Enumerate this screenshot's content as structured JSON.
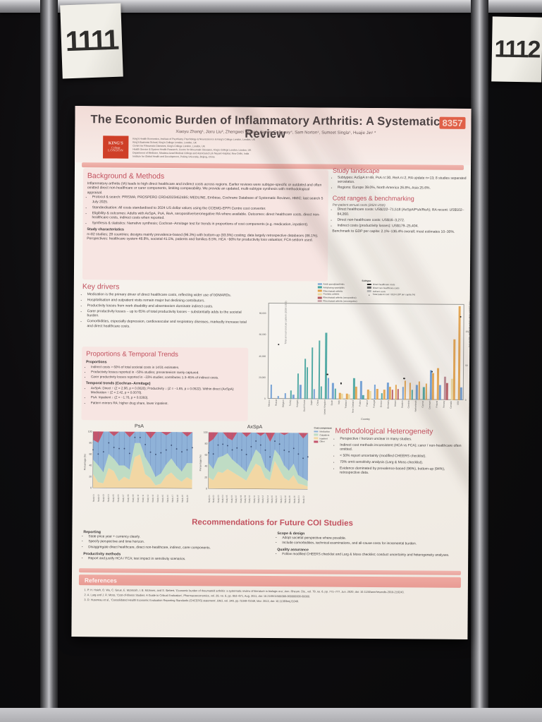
{
  "scene": {
    "board_number_left": "1111",
    "board_number_right": "1112"
  },
  "poster": {
    "title": "The Economic Burden of Inflammatory Arthritis: A Systematic Review",
    "badge": "8357",
    "authors": "Xiaoyu Zhang¹, Jiaru Liu², Zhengwei Wang³, James Galloway⁴, Sam Norton⁴, Sumeet Singla⁵, Huajie Jin¹ *",
    "logo_lines": [
      "KING'S",
      "College",
      "LONDON"
    ],
    "affiliations": [
      "King's Health Economics, Institute of Psychiatry, Psychology & Neuroscience at King's College London, London, UK",
      "King's Business School, King's College London, London, UK",
      "Centre for Rheumatic Diseases, King's College London, London, UK",
      "Health Service & System Health Research, Centre for Rheumatic Diseases, King's College London, London, UK",
      "Department of Medicine, Maulana Azad Medical College and Associated Lok Nayak Hospital, New Delhi, India",
      "Institute for Global Health and Development, Peking University, Beijing, China"
    ],
    "sections": {
      "background": {
        "heading": "Background & Methods",
        "intro": "Inflammatory arthritis (IA) leads to high direct healthcare and indirect costs across regions. Earlier reviews were subtype-specific or outdated and often omitted direct non-healthcare or carer components, limiting comparability. We provide an updated, multi-subtype synthesis with methodological appraisal.",
        "bullets": [
          "Protocol & search: PRISMA; PROSPERO CRD420234524B5; MEDLINE, Embase, Cochrane Database of Systematic Reviews, HMIC; last search 5 July 2025.",
          "Standardisation: All costs standardised to 2024 US dollar values using the CCEMG-EPPI Centre cost converter.",
          "Eligibility & outcomes: Adults with AxSpA, PsA, ReA, seropositive/seronegative RA where available. Outcomes: direct healthcare costs, direct non-healthcare costs, indirect costs when reported.",
          "Synthesis & statistics: Narrative synthesis; Cochran–Armitage test for trends in proportions of cost components (e.g. medication, inpatient)."
        ],
        "subheading": "Study characteristics",
        "characteristics": "n=82 studies; 28 countries; designs mainly prevalence-based (96.3%) with bottom-up (93.9%) costing; data largely retrospective databases (86.1%). Perspectives: healthcare system 48.8%, societal 41.5%, patients and families 8.5%. HCA ~90% for productivity loss valuation; FCA seldom used."
      },
      "study_landscape": {
        "heading": "Study landscape",
        "bullets": [
          "Subtypes: AxSpA n=49, PsA n=30, ReA n=2, RA update n=13; 8 studies separated serostatus.",
          "Regions: Europe 39.0%, North America 26.8%, Asia 25.6%."
        ]
      },
      "cost_ranges": {
        "heading": "Cost ranges & benchmarking",
        "note": "Per-patient annual costs (2024 USD)",
        "bullets": [
          "Direct healthcare costs: US$222–71,518 (AxSpA/PsA/ReA); RA recent: US$502–84,260.",
          "Direct non-healthcare costs: US$16–3,272.",
          "Indirect costs (productivity losses): US$179–25,404."
        ],
        "benchmark": "Benchmark to GDP per capita: 2.1%–136.4% overall; most estimates 10–30%."
      },
      "key_drivers": {
        "heading": "Key drivers",
        "bullets": [
          "Medication is the primary driver of direct healthcare costs, reflecting wider use of bDMARDs.",
          "Hospitalisation and outpatient visits remain major but declining contributors.",
          "Productivity losses from work disability and absenteeism dominate indirect costs.",
          "Carer productivity losses – up to 65% of total productivity losses – substantially adds to the societal burden.",
          "Comorbidities, especially depression, cardiovascular and respiratory diseases, markedly increase total and direct healthcare costs."
        ]
      },
      "proportions": {
        "heading": "Proportions & Temporal Trends",
        "sub1": "Proportions",
        "bullets1": [
          "Indirect costs > 60% of total societal costs in 14/31 estimates.",
          "Productivity losses reported in ~50% studies; presenteeism rarely captured.",
          "Carer productivity losses reported in ~33% studies; contributes 1.3–65% of indirect costs."
        ],
        "sub2": "Temporal trends (Cochran–Armitage)",
        "bullets2": [
          "AxSpA: Direct ↑ (Z = 2.98, p = 0.0020); Productivity ↓ (Z = −1.85, p = 0.0522). Within direct (AxSpA): Medication ↑ (Z = 2.42, p = 0.0078).",
          "PsA: Inpatient ↓ (Z = −1.76, p = 0.0393).",
          "Pattern mirrors RA: higher drug share, lower inpatient."
        ]
      },
      "heterogeneity": {
        "heading": "Methodological Heterogeneity",
        "bullets": [
          "Perspective / horizon unclear in many studies.",
          "Indirect cost methods inconsistent (HCA vs FCA); carer / non-healthcare often omitted.",
          "< 50% report uncertainty (modified CHEERS checklist).",
          "70% omit sensitivity analysis (Larg & Moss checklist).",
          "Evidence dominated by prevalence-based (96%), bottom-up (94%), retrospective data."
        ]
      },
      "recommendations": {
        "heading": "Recommendations for Future COI Studies",
        "left": {
          "sub1": "Reporting",
          "b1": [
            "State price year + currency clearly.",
            "Specify perspective and time horizon.",
            "Disaggregate direct healthcare, direct non-healthcare, indirect, carer components."
          ],
          "sub2": "Productivity methods",
          "b2": [
            "Report and justify HCA / FCA; test impact in sensitivity scenarios."
          ]
        },
        "right": {
          "sub1": "Scope & design",
          "b1": [
            "Adopt societal perspective where possible.",
            "Include comorbidities, technical examinations, and all-cause costs for incremental burden."
          ],
          "sub2": "Quality assurance",
          "b2": [
            "Follow modified CHEERS checklist and Larg & Moss checklist; conduct uncertainty and heterogeneity analyses."
          ]
        }
      },
      "references": {
        "heading": "References",
        "items": [
          "P. H. Hsieh, O. Wu, C. Geue, E. McIntosh, I. B. McInnes, and S. Siebert, 'Economic burden of rheumatoid arthritis: a systematic review of literature in biologic era', Ann. Rheum. Dis., vol. 79, no. 6, pp. 771–777, Jun. 2020, doi: 10.1136/annrheumdis-2019-216243.",
          "A. Larg and J. R. Moss, 'Cost-of-Illness Studies: A Guide to Critical Evaluation', Pharmacoeconomics, vol. 29, no. 8, pp. 653–671, Aug. 2011, doi: 10.2165/11588380-000000000-00000.",
          "D. Husereau et al., 'Consolidated Health Economic Evaluation Reporting Standards (CHEERS) statement', BMJ, vol. 346, pp. f1049–f1049, Mar. 2013, doi: 10.1136/bmj.f1049."
        ]
      }
    }
  },
  "chart_data": [
    {
      "type": "bar",
      "title": "",
      "xlabel": "Country",
      "ylabel": "Total annual cost per patient (2024 USD)",
      "ylabel_right": "Total patient cost / 2024 GDP per capita (%)",
      "ylim": [
        0,
        90000
      ],
      "yticks": [
        "0",
        "20,000",
        "40,000",
        "60,000",
        "80,000"
      ],
      "ytick_values": [
        0,
        20000,
        40000,
        60000,
        80000
      ],
      "right_axis_max": 140,
      "yticks_right": [
        "0",
        "50",
        "100"
      ],
      "ytick_right_values": [
        0,
        50,
        100
      ],
      "legend_title": "Subtype",
      "subtypes": [
        {
          "label": "Axial spondyloarthritis",
          "color": "#6b9bd2"
        },
        {
          "label": "Ankylosing spondylitis",
          "color": "#46a5a0"
        },
        {
          "label": "Rheumatoid arthritis",
          "color": "#e2a24b"
        },
        {
          "label": "Psoriatic arthritis",
          "color": "#ead9a0"
        },
        {
          "label": "Rheumatoid arthritis (seropositive)",
          "color": "#b4575f"
        },
        {
          "label": "Rheumatoid arthritis (seronegative)",
          "color": "#b98a93"
        }
      ],
      "cost_types": [
        {
          "label": "Direct healthcare costs",
          "color": "#222222"
        },
        {
          "label": "Direct non-healthcare costs",
          "color": "#666666"
        },
        {
          "label": "Indirect costs",
          "color": "#bbbbbb"
        }
      ],
      "marker_label": "Total patient cost / 2024 GDP per capita (%)",
      "groups": [
        {
          "c": "Mexico",
          "b": [
            [
              0,
              13000
            ]
          ]
        },
        {
          "c": "Russia",
          "b": [
            [
              0,
              2500
            ]
          ],
          "d": 78
        },
        {
          "c": "Belgium",
          "b": [
            [
              0,
              5000
            ]
          ]
        },
        {
          "c": "Turkey",
          "b": [
            [
              1,
              8000
            ],
            [
              0,
              4000
            ]
          ]
        },
        {
          "c": "Hungary",
          "b": [
            [
              1,
              24000
            ],
            [
              0,
              13000
            ]
          ]
        },
        {
          "c": "South Korea",
          "b": [
            [
              1,
              38000
            ],
            [
              1,
              30000
            ]
          ]
        },
        {
          "c": "Japan",
          "b": [
            [
              1,
              48000
            ],
            [
              0,
              9000
            ]
          ]
        },
        {
          "c": "China",
          "b": [
            [
              1,
              55000
            ],
            [
              1,
              12000
            ]
          ]
        },
        {
          "c": "United Kingdom",
          "b": [
            [
              1,
              62000
            ],
            [
              0,
              20000
            ]
          ],
          "d": 35
        },
        {
          "c": "Spain",
          "b": [
            [
              0,
              15000
            ],
            [
              1,
              10000
            ]
          ]
        },
        {
          "c": "Italy",
          "b": [
            [
              2,
              6000
            ],
            [
              3,
              5000
            ]
          ],
          "d": 22
        },
        {
          "c": "Thailand",
          "b": [
            [
              2,
              5000
            ],
            [
              3,
              4500
            ]
          ]
        },
        {
          "c": "New Zealand",
          "b": [
            [
              1,
              20000
            ],
            [
              2,
              12000
            ]
          ]
        },
        {
          "c": "Poland",
          "b": [
            [
              0,
              17000
            ],
            [
              1,
              4000
            ]
          ]
        },
        {
          "c": "France",
          "b": [
            [
              2,
              9000
            ],
            [
              3,
              8000
            ]
          ]
        },
        {
          "c": "Portugal",
          "b": [
            [
              0,
              14000
            ],
            [
              2,
              10000
            ]
          ]
        },
        {
          "c": "Greece",
          "b": [
            [
              1,
              6000
            ],
            [
              2,
              9000
            ]
          ]
        },
        {
          "c": "Germany",
          "b": [
            [
              0,
              16000
            ],
            [
              2,
              12000
            ],
            [
              4,
              9000
            ]
          ]
        },
        {
          "c": "Ireland",
          "b": [
            [
              2,
              14000
            ],
            [
              4,
              10000
            ]
          ]
        },
        {
          "c": "Sweden",
          "b": [
            [
              0,
              12000
            ],
            [
              2,
              18000
            ]
          ],
          "d": 30
        },
        {
          "c": "Czechia",
          "b": [
            [
              2,
              16000
            ],
            [
              1,
              9000
            ]
          ]
        },
        {
          "c": "Netherlands",
          "b": [
            [
              0,
              14000
            ],
            [
              2,
              17000
            ]
          ]
        },
        {
          "c": "Cyprus",
          "b": [
            [
              1,
              12000
            ],
            [
              2,
              15000
            ]
          ]
        },
        {
          "c": "Denmark",
          "b": [
            [
              0,
              28000
            ],
            [
              2,
              25000
            ]
          ],
          "d": 40
        },
        {
          "c": "Finland",
          "b": [
            [
              2,
              30000
            ],
            [
              0,
              14000
            ]
          ]
        },
        {
          "c": "Norway",
          "b": [
            [
              5,
              22000
            ],
            [
              4,
              16000
            ]
          ]
        },
        {
          "c": "Canada",
          "b": [
            [
              3,
              20000
            ],
            [
              2,
              57000
            ]
          ]
        },
        {
          "c": "USA",
          "b": [
            [
              2,
              88000
            ],
            [
              0,
              12000
            ]
          ],
          "d": 120
        }
      ]
    },
    {
      "type": "area",
      "title": "PsA",
      "ylabel": "Percentage (%)",
      "ylim": [
        0,
        100
      ],
      "yticks": [
        0,
        20,
        40,
        60,
        80,
        100
      ],
      "legend_title": "Cost component",
      "components": [
        {
          "label": "Medication",
          "color": "#8fb2d8"
        },
        {
          "label": "Outpatient",
          "color": "#bfdcc4"
        },
        {
          "label": "Inpatient",
          "color": "#f2d7a4"
        },
        {
          "label": "Other",
          "color": "#c4556d"
        }
      ],
      "x_labels": [
        "Study 01",
        "Study 02",
        "Study 03",
        "Study 04",
        "Study 05",
        "Study 06",
        "Study 07",
        "Study 08",
        "Study 09",
        "Study 10",
        "Study 11",
        "Study 12",
        "Study 13",
        "Study 14",
        "Study 15",
        "Study 16",
        "Study 17",
        "Study 18",
        "Study 19",
        "Study 20"
      ],
      "inpatient": [
        25,
        10,
        8,
        35,
        30,
        12,
        20,
        15,
        55,
        60,
        25,
        18,
        5,
        8,
        22,
        28,
        18,
        12,
        20,
        15
      ],
      "outpatient": [
        25,
        30,
        20,
        25,
        22,
        28,
        20,
        18,
        25,
        20,
        30,
        22,
        15,
        18,
        20,
        25,
        22,
        18,
        25,
        30
      ],
      "other": [
        15,
        20,
        0,
        0,
        8,
        0,
        0,
        10,
        0,
        0,
        0,
        12,
        0,
        0,
        6,
        0,
        0,
        0,
        8,
        0
      ]
    },
    {
      "type": "area",
      "title": "AxSpA",
      "ylabel": "Percentage (%)",
      "ylim": [
        0,
        100
      ],
      "yticks": [
        0,
        20,
        40,
        60,
        80,
        100
      ],
      "x_labels": [
        "Study 01",
        "Study 02",
        "Study 03",
        "Study 04",
        "Study 05",
        "Study 06",
        "Study 07",
        "Study 08",
        "Study 09",
        "Study 10",
        "Study 11",
        "Study 12",
        "Study 13",
        "Study 14",
        "Study 15",
        "Study 16",
        "Study 17",
        "Study 18",
        "Study 19",
        "Study 20",
        "Study 21",
        "Study 22"
      ],
      "inpatient": [
        20,
        15,
        30,
        28,
        35,
        30,
        25,
        20,
        15,
        30,
        45,
        40,
        20,
        15,
        50,
        35,
        20,
        15,
        25,
        10,
        8,
        5
      ],
      "outpatient": [
        25,
        20,
        25,
        30,
        28,
        22,
        20,
        18,
        15,
        20,
        25,
        22,
        18,
        15,
        20,
        25,
        22,
        18,
        20,
        15,
        12,
        10
      ],
      "other": [
        18,
        12,
        0,
        0,
        10,
        14,
        0,
        0,
        8,
        0,
        0,
        6,
        0,
        16,
        0,
        0,
        4,
        0,
        0,
        0,
        10,
        0
      ]
    }
  ]
}
